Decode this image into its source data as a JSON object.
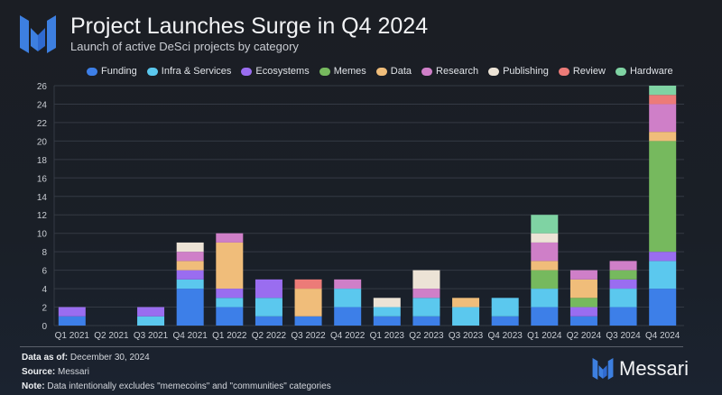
{
  "header": {
    "title": "Project Launches Surge in Q4 2024",
    "subtitle": "Launch of active DeSci projects by category"
  },
  "footer": {
    "data_as_of_label": "Data as of:",
    "data_as_of_value": "December 30, 2024",
    "source_label": "Source:",
    "source_value": "Messari",
    "note_label": "Note:",
    "note_value": "Data intentionally excludes \"memecoins\" and \"communities\" categories"
  },
  "brand": {
    "name": "Messari",
    "logo_icon": "messari-m-logo",
    "color": "#3d7fe0"
  },
  "chart_data": {
    "type": "bar",
    "stacked": true,
    "title": "Project Launches Surge in Q4 2024",
    "subtitle": "Launch of active DeSci projects by category",
    "xlabel": "",
    "ylabel": "",
    "ylim": [
      0,
      26
    ],
    "yticks": [
      0,
      2,
      4,
      6,
      8,
      10,
      12,
      14,
      16,
      18,
      20,
      22,
      24,
      26
    ],
    "grid": true,
    "legend_position": "top",
    "categories": [
      "Q1 2021",
      "Q2 2021",
      "Q3 2021",
      "Q4 2021",
      "Q1 2022",
      "Q2 2022",
      "Q3 2022",
      "Q4 2022",
      "Q1 2023",
      "Q2 2023",
      "Q3 2023",
      "Q4 2023",
      "Q1 2024",
      "Q2 2024",
      "Q3 2024",
      "Q4 2024"
    ],
    "series": [
      {
        "name": "Funding",
        "color": "#3d7fe8",
        "values": [
          1,
          0,
          0,
          4,
          2,
          1,
          1,
          2,
          1,
          1,
          0,
          1,
          2,
          1,
          2,
          4
        ]
      },
      {
        "name": "Infra & Services",
        "color": "#5bc8ee",
        "values": [
          0,
          0,
          1,
          1,
          1,
          2,
          0,
          2,
          1,
          2,
          2,
          2,
          2,
          0,
          2,
          3
        ]
      },
      {
        "name": "Ecosystems",
        "color": "#9a6df0",
        "values": [
          1,
          0,
          1,
          1,
          1,
          2,
          0,
          0,
          0,
          0,
          0,
          0,
          0,
          1,
          1,
          1
        ]
      },
      {
        "name": "Memes",
        "color": "#76b95e",
        "values": [
          0,
          0,
          0,
          0,
          0,
          0,
          0,
          0,
          0,
          0,
          0,
          0,
          2,
          1,
          1,
          12
        ]
      },
      {
        "name": "Data",
        "color": "#f0bd7a",
        "values": [
          0,
          0,
          0,
          1,
          5,
          0,
          3,
          0,
          0,
          0,
          1,
          0,
          1,
          2,
          0,
          1
        ]
      },
      {
        "name": "Research",
        "color": "#cf7fc8",
        "values": [
          0,
          0,
          0,
          1,
          1,
          0,
          0,
          1,
          0,
          1,
          0,
          0,
          2,
          1,
          1,
          3
        ]
      },
      {
        "name": "Publishing",
        "color": "#ece3d6",
        "values": [
          0,
          0,
          0,
          1,
          0,
          0,
          0,
          0,
          1,
          2,
          0,
          0,
          1,
          0,
          0,
          0
        ]
      },
      {
        "name": "Review",
        "color": "#ec7b78",
        "values": [
          0,
          0,
          0,
          0,
          0,
          0,
          1,
          0,
          0,
          0,
          0,
          0,
          0,
          0,
          0,
          1
        ]
      },
      {
        "name": "Hardware",
        "color": "#7fd3a3",
        "values": [
          0,
          0,
          0,
          0,
          0,
          0,
          0,
          0,
          0,
          0,
          0,
          0,
          2,
          0,
          0,
          1
        ]
      }
    ],
    "totals": [
      2,
      0,
      2,
      9,
      10,
      5,
      5,
      5,
      3,
      6,
      3,
      3,
      12,
      6,
      7,
      26
    ]
  }
}
